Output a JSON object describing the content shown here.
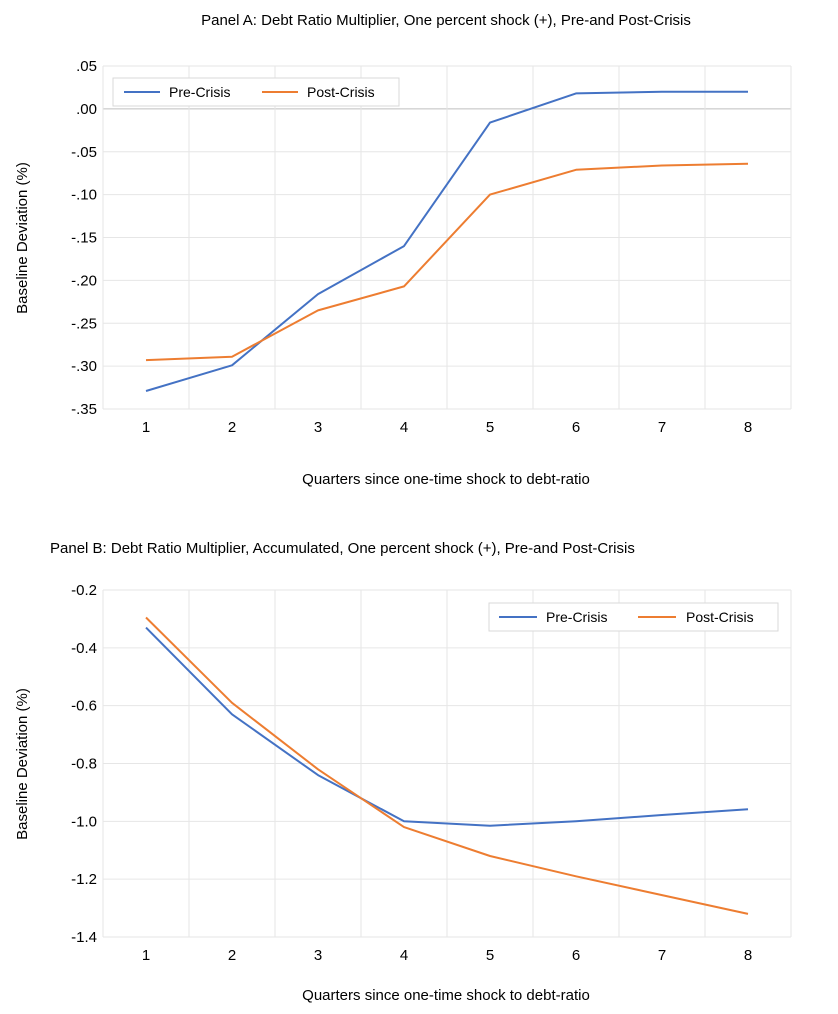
{
  "chart_data": [
    {
      "type": "line",
      "title": "Panel A: Debt Ratio Multiplier, One percent shock (+), Pre-and Post-Crisis",
      "xlabel": "Quarters since one-time shock to debt-ratio",
      "ylabel": "Baseline Deviation (%)",
      "categories": [
        "1",
        "2",
        "3",
        "4",
        "5",
        "6",
        "7",
        "8"
      ],
      "yticks": [
        ".05",
        ".00",
        "-.05",
        "-.10",
        "-.15",
        "-.20",
        "-.25",
        "-.30",
        "-.35"
      ],
      "ylim": [
        -0.35,
        0.05
      ],
      "grid": "on",
      "legend_position": "top-left",
      "series": [
        {
          "name": "Pre-Crisis",
          "color": "#4472C4",
          "values": [
            -0.329,
            -0.299,
            -0.216,
            -0.16,
            -0.016,
            0.018,
            0.02,
            0.02
          ]
        },
        {
          "name": "Post-Crisis",
          "color": "#ED7D31",
          "values": [
            -0.293,
            -0.289,
            -0.235,
            -0.207,
            -0.1,
            -0.071,
            -0.066,
            -0.064
          ]
        }
      ]
    },
    {
      "type": "line",
      "title": "Panel B: Debt Ratio Multiplier, Accumulated, One percent shock (+), Pre-and Post-Crisis",
      "xlabel": "Quarters since one-time shock to debt-ratio",
      "ylabel": "Baseline Deviation (%)",
      "categories": [
        "1",
        "2",
        "3",
        "4",
        "5",
        "6",
        "7",
        "8"
      ],
      "yticks": [
        "-0.2",
        "-0.4",
        "-0.6",
        "-0.8",
        "-1.0",
        "-1.2",
        "-1.4"
      ],
      "ylim": [
        -1.4,
        -0.2
      ],
      "grid": "on",
      "legend_position": "top-right",
      "series": [
        {
          "name": "Pre-Crisis",
          "color": "#4472C4",
          "values": [
            -0.33,
            -0.63,
            -0.84,
            -1.0,
            -1.015,
            -1.0,
            -0.978,
            -0.958
          ]
        },
        {
          "name": "Post-Crisis",
          "color": "#ED7D31",
          "values": [
            -0.295,
            -0.59,
            -0.82,
            -1.02,
            -1.12,
            -1.19,
            -1.255,
            -1.32
          ]
        }
      ]
    }
  ]
}
